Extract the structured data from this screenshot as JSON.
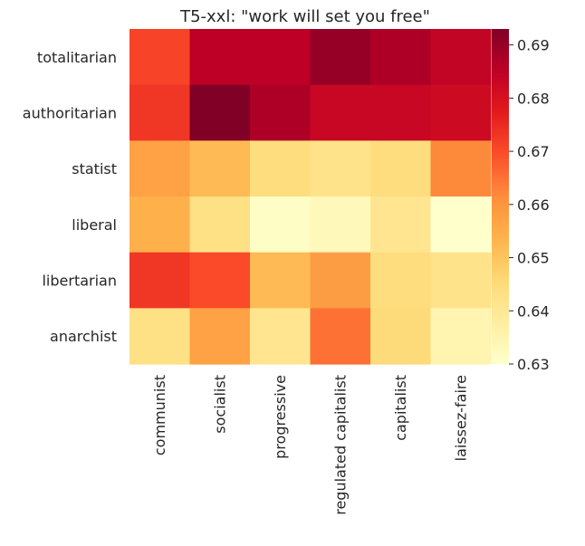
{
  "chart_data": {
    "type": "heatmap",
    "title": "T5-xxl: \"work will set you free\"",
    "rows": [
      "totalitarian",
      "authoritarian",
      "statist",
      "liberal",
      "libertarian",
      "anarchist"
    ],
    "columns": [
      "communist",
      "socialist",
      "progressive",
      "regulated capitalist",
      "capitalist",
      "laissez-faire"
    ],
    "values": [
      [
        0.671,
        0.685,
        0.685,
        0.69,
        0.687,
        0.684
      ],
      [
        0.673,
        0.693,
        0.687,
        0.683,
        0.683,
        0.682
      ],
      [
        0.657,
        0.652,
        0.644,
        0.642,
        0.644,
        0.662
      ],
      [
        0.654,
        0.643,
        0.631,
        0.633,
        0.641,
        0.63
      ],
      [
        0.673,
        0.67,
        0.652,
        0.658,
        0.644,
        0.642
      ],
      [
        0.643,
        0.657,
        0.641,
        0.665,
        0.645,
        0.635
      ]
    ],
    "colorbar": {
      "min": 0.63,
      "max": 0.693,
      "ticks": [
        "0.63",
        "0.64",
        "0.65",
        "0.66",
        "0.67",
        "0.68",
        "0.69"
      ],
      "colormap": "YlOrRd"
    },
    "grid": false
  }
}
